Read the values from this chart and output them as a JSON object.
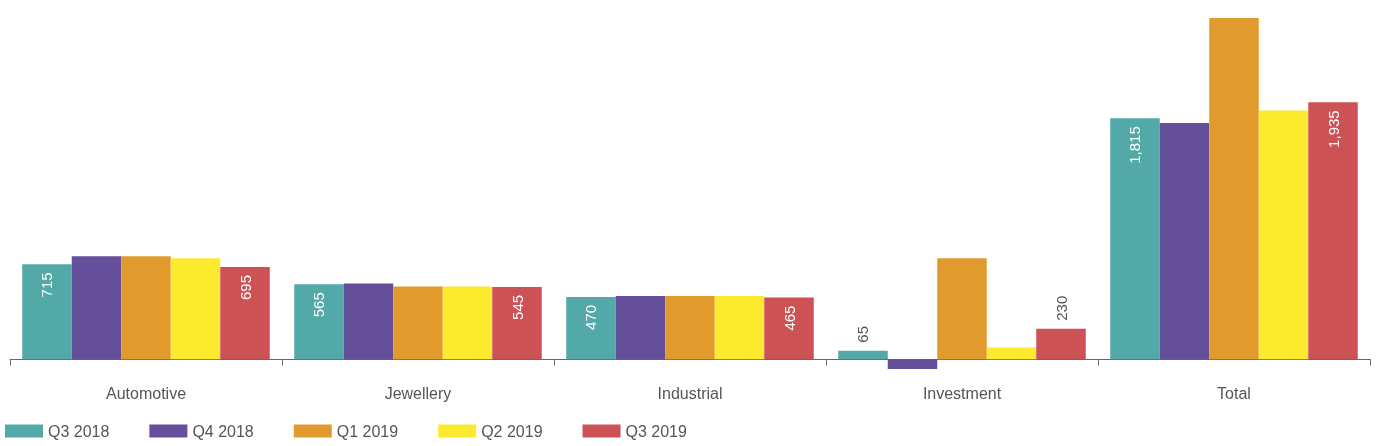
{
  "chart_data": {
    "type": "bar",
    "categories": [
      "Automotive",
      "Jewellery",
      "Industrial",
      "Investment",
      "Total"
    ],
    "series": [
      {
        "name": "Q3 2018",
        "color": "#52a9a8",
        "values": [
          715,
          565,
          470,
          65,
          1815
        ],
        "value_labels": [
          "715",
          "565",
          "470",
          "65",
          "1,815"
        ]
      },
      {
        "name": "Q4 2018",
        "color": "#654e9a",
        "values": [
          776,
          571,
          476,
          -73,
          1779
        ],
        "value_labels": [
          null,
          null,
          null,
          null,
          null
        ]
      },
      {
        "name": "Q1 2019",
        "color": "#e09a2e",
        "values": [
          776,
          549,
          476,
          761,
          2570
        ],
        "value_labels": [
          null,
          null,
          null,
          null,
          null
        ]
      },
      {
        "name": "Q2 2019",
        "color": "#fcea2f",
        "values": [
          761,
          549,
          476,
          88,
          1874
        ],
        "value_labels": [
          null,
          null,
          null,
          null,
          null
        ]
      },
      {
        "name": "Q3 2019",
        "color": "#cd5255",
        "values": [
          695,
          545,
          465,
          230,
          1935
        ],
        "value_labels": [
          "695",
          "545",
          "465",
          "230",
          "1,935"
        ]
      }
    ],
    "legend": "bottom left"
  }
}
